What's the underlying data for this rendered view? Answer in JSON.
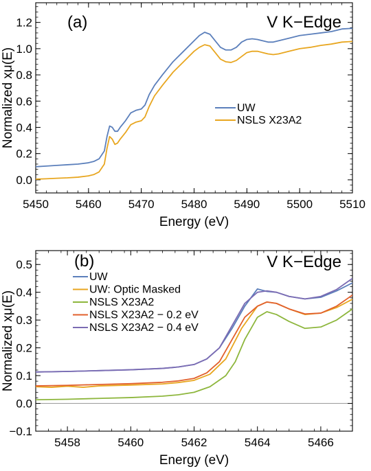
{
  "chart_data": [
    {
      "type": "line",
      "panel_label": "(a)",
      "annotation": "V K−Edge",
      "xlabel": "Energy (eV)",
      "ylabel": "Normalized xμ(E)",
      "xlim": [
        5450,
        5510
      ],
      "ylim": [
        -0.1,
        1.35
      ],
      "xticks": [
        5450,
        5460,
        5470,
        5480,
        5490,
        5500,
        5510
      ],
      "yticks": [
        0.0,
        0.2,
        0.4,
        0.6,
        0.8,
        1.0,
        1.2
      ],
      "ytick_labels": [
        "0.0",
        "0.2",
        "0.4",
        "0.6",
        "0.8",
        "1.0",
        "1.2"
      ],
      "grid": false,
      "legend_position": "center-right",
      "series": [
        {
          "name": "UW",
          "color": "#5b7fbb",
          "points": [
            [
              5450,
              0.1
            ],
            [
              5452,
              0.105
            ],
            [
              5454,
              0.11
            ],
            [
              5456,
              0.115
            ],
            [
              5458,
              0.12
            ],
            [
              5460,
              0.13
            ],
            [
              5461,
              0.14
            ],
            [
              5462,
              0.16
            ],
            [
              5463,
              0.22
            ],
            [
              5463.5,
              0.33
            ],
            [
              5464,
              0.41
            ],
            [
              5464.5,
              0.4
            ],
            [
              5465,
              0.37
            ],
            [
              5465.5,
              0.37
            ],
            [
              5466,
              0.4
            ],
            [
              5467,
              0.45
            ],
            [
              5468,
              0.51
            ],
            [
              5469,
              0.53
            ],
            [
              5470,
              0.54
            ],
            [
              5470.7,
              0.57
            ],
            [
              5471.5,
              0.65
            ],
            [
              5472.5,
              0.72
            ],
            [
              5474,
              0.8
            ],
            [
              5476,
              0.9
            ],
            [
              5478,
              0.98
            ],
            [
              5480,
              1.06
            ],
            [
              5481,
              1.1
            ],
            [
              5482,
              1.125
            ],
            [
              5483,
              1.11
            ],
            [
              5484,
              1.06
            ],
            [
              5485,
              1.01
            ],
            [
              5486,
              0.99
            ],
            [
              5487,
              0.99
            ],
            [
              5488,
              1.01
            ],
            [
              5489,
              1.05
            ],
            [
              5490,
              1.07
            ],
            [
              5491,
              1.075
            ],
            [
              5492,
              1.07
            ],
            [
              5493,
              1.06
            ],
            [
              5494,
              1.05
            ],
            [
              5495,
              1.05
            ],
            [
              5496,
              1.06
            ],
            [
              5498,
              1.08
            ],
            [
              5500,
              1.1
            ],
            [
              5502,
              1.11
            ],
            [
              5504,
              1.12
            ],
            [
              5506,
              1.13
            ],
            [
              5508,
              1.15
            ],
            [
              5510,
              1.155
            ]
          ]
        },
        {
          "name": "NSLS X23A2",
          "color": "#e8a61f",
          "points": [
            [
              5450,
              0.005
            ],
            [
              5452,
              0.008
            ],
            [
              5454,
              0.012
            ],
            [
              5456,
              0.015
            ],
            [
              5458,
              0.02
            ],
            [
              5460,
              0.03
            ],
            [
              5461,
              0.04
            ],
            [
              5462,
              0.06
            ],
            [
              5463,
              0.12
            ],
            [
              5463.5,
              0.24
            ],
            [
              5464,
              0.33
            ],
            [
              5464.5,
              0.31
            ],
            [
              5465,
              0.27
            ],
            [
              5465.5,
              0.28
            ],
            [
              5466,
              0.31
            ],
            [
              5467,
              0.36
            ],
            [
              5468,
              0.42
            ],
            [
              5469,
              0.44
            ],
            [
              5470,
              0.45
            ],
            [
              5470.7,
              0.48
            ],
            [
              5471.5,
              0.56
            ],
            [
              5472.5,
              0.64
            ],
            [
              5474,
              0.72
            ],
            [
              5476,
              0.82
            ],
            [
              5478,
              0.9
            ],
            [
              5480,
              0.98
            ],
            [
              5481,
              1.01
            ],
            [
              5482,
              1.03
            ],
            [
              5483,
              1.02
            ],
            [
              5484,
              0.97
            ],
            [
              5485,
              0.92
            ],
            [
              5486,
              0.9
            ],
            [
              5487,
              0.895
            ],
            [
              5488,
              0.91
            ],
            [
              5489,
              0.94
            ],
            [
              5490,
              0.97
            ],
            [
              5491,
              0.98
            ],
            [
              5492,
              0.98
            ],
            [
              5493,
              0.97
            ],
            [
              5494,
              0.96
            ],
            [
              5495,
              0.955
            ],
            [
              5496,
              0.96
            ],
            [
              5498,
              0.98
            ],
            [
              5500,
              1.0
            ],
            [
              5502,
              1.01
            ],
            [
              5504,
              1.025
            ],
            [
              5506,
              1.035
            ],
            [
              5508,
              1.05
            ],
            [
              5510,
              1.055
            ]
          ]
        }
      ]
    },
    {
      "type": "line",
      "panel_label": "(b)",
      "annotation": "V K−Edge",
      "xlabel": "Energy (eV)",
      "ylabel": "Normalized xμ(E)",
      "xlim": [
        5457,
        5467
      ],
      "ylim": [
        -0.1,
        0.55
      ],
      "xticks": [
        5458,
        5460,
        5462,
        5464,
        5466
      ],
      "yticks": [
        -0.1,
        0.0,
        0.1,
        0.2,
        0.3,
        0.4,
        0.5
      ],
      "ytick_labels": [
        "−0.1",
        "0.0",
        "0.1",
        "0.2",
        "0.3",
        "0.4",
        "0.5"
      ],
      "zero_line": true,
      "grid": false,
      "legend_position": "top-left",
      "series": [
        {
          "name": "UW",
          "color": "#5b7fbb",
          "points": [
            [
              5457,
              0.113
            ],
            [
              5458,
              0.115
            ],
            [
              5459,
              0.118
            ],
            [
              5460,
              0.121
            ],
            [
              5461,
              0.126
            ],
            [
              5461.5,
              0.131
            ],
            [
              5462,
              0.14
            ],
            [
              5462.4,
              0.16
            ],
            [
              5462.8,
              0.2
            ],
            [
              5463.2,
              0.27
            ],
            [
              5463.6,
              0.35
            ],
            [
              5464,
              0.412
            ],
            [
              5464.3,
              0.403
            ],
            [
              5464.6,
              0.4
            ],
            [
              5465,
              0.385
            ],
            [
              5465.5,
              0.376
            ],
            [
              5466,
              0.382
            ],
            [
              5466.5,
              0.405
            ],
            [
              5467,
              0.434
            ]
          ]
        },
        {
          "name": "UW: Optic Masked",
          "color": "#e8a61f",
          "points": [
            [
              5457,
              0.06
            ],
            [
              5457.5,
              0.058
            ],
            [
              5458,
              0.062
            ],
            [
              5458.5,
              0.058
            ],
            [
              5459,
              0.063
            ],
            [
              5460,
              0.066
            ],
            [
              5461,
              0.07
            ],
            [
              5461.5,
              0.075
            ],
            [
              5462,
              0.083
            ],
            [
              5462.5,
              0.105
            ],
            [
              5463,
              0.16
            ],
            [
              5463.5,
              0.27
            ],
            [
              5464,
              0.35
            ],
            [
              5464.3,
              0.365
            ],
            [
              5464.6,
              0.36
            ],
            [
              5465,
              0.34
            ],
            [
              5465.5,
              0.32
            ],
            [
              5466,
              0.325
            ],
            [
              5466.5,
              0.345
            ],
            [
              5467,
              0.375
            ]
          ]
        },
        {
          "name": "NSLS X23A2",
          "color": "#8db63c",
          "points": [
            [
              5457,
              0.013
            ],
            [
              5458,
              0.015
            ],
            [
              5459,
              0.018
            ],
            [
              5460,
              0.021
            ],
            [
              5461,
              0.026
            ],
            [
              5461.5,
              0.031
            ],
            [
              5462,
              0.04
            ],
            [
              5462.5,
              0.06
            ],
            [
              5463,
              0.1
            ],
            [
              5463.3,
              0.15
            ],
            [
              5463.6,
              0.23
            ],
            [
              5464,
              0.31
            ],
            [
              5464.3,
              0.33
            ],
            [
              5464.6,
              0.32
            ],
            [
              5465,
              0.295
            ],
            [
              5465.5,
              0.27
            ],
            [
              5466,
              0.275
            ],
            [
              5466.5,
              0.3
            ],
            [
              5467,
              0.34
            ]
          ]
        },
        {
          "name": "NSLS X23A2 − 0.2 eV",
          "color": "#e15f2b",
          "points": [
            [
              5457,
              0.063
            ],
            [
              5458,
              0.065
            ],
            [
              5459,
              0.068
            ],
            [
              5460,
              0.071
            ],
            [
              5461,
              0.076
            ],
            [
              5461.5,
              0.081
            ],
            [
              5462,
              0.09
            ],
            [
              5462.4,
              0.11
            ],
            [
              5462.8,
              0.15
            ],
            [
              5463.2,
              0.23
            ],
            [
              5463.6,
              0.31
            ],
            [
              5464,
              0.35
            ],
            [
              5464.3,
              0.365
            ],
            [
              5464.6,
              0.36
            ],
            [
              5465,
              0.34
            ],
            [
              5465.5,
              0.322
            ],
            [
              5466,
              0.325
            ],
            [
              5466.5,
              0.35
            ],
            [
              5467,
              0.39
            ]
          ]
        },
        {
          "name": "NSLS X23A2 − 0.4 eV",
          "color": "#7b6bb3",
          "points": [
            [
              5457,
              0.113
            ],
            [
              5458,
              0.115
            ],
            [
              5459,
              0.118
            ],
            [
              5460,
              0.121
            ],
            [
              5461,
              0.126
            ],
            [
              5461.5,
              0.131
            ],
            [
              5462,
              0.14
            ],
            [
              5462.4,
              0.16
            ],
            [
              5462.8,
              0.2
            ],
            [
              5463.2,
              0.28
            ],
            [
              5463.6,
              0.36
            ],
            [
              5464,
              0.4
            ],
            [
              5464.3,
              0.405
            ],
            [
              5464.6,
              0.4
            ],
            [
              5465,
              0.385
            ],
            [
              5465.5,
              0.376
            ],
            [
              5466,
              0.385
            ],
            [
              5466.5,
              0.41
            ],
            [
              5467,
              0.45
            ]
          ]
        }
      ]
    }
  ]
}
